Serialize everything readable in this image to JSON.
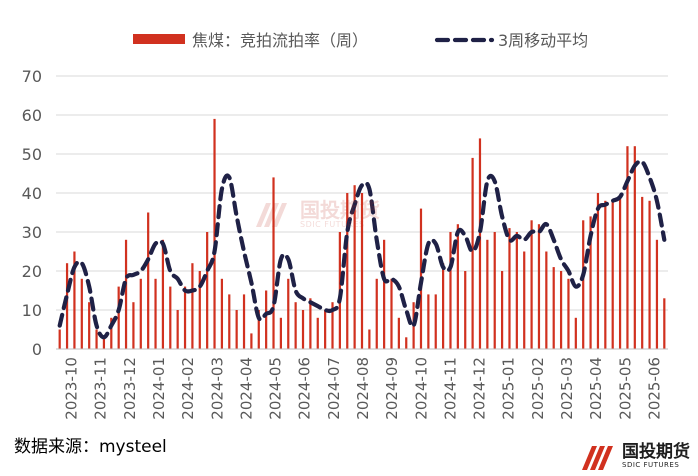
{
  "chart_data": {
    "type": "bar",
    "title": "",
    "xlabel": "",
    "ylabel": "",
    "ylim": [
      0,
      70
    ],
    "yticks": [
      0,
      10,
      20,
      30,
      40,
      50,
      60,
      70
    ],
    "grid": true,
    "legend_position": "top",
    "x_tick_labels": [
      "2023-10",
      "2023-11",
      "2023-12",
      "2024-01",
      "2024-02",
      "2024-03",
      "2024-04",
      "2024-05",
      "2024-06",
      "2024-07",
      "2024-08",
      "2024-09",
      "2024-10",
      "2024-11",
      "2024-12",
      "2025-01",
      "2025-02",
      "2025-03",
      "2025-04",
      "2025-05",
      "2025-06"
    ],
    "series": [
      {
        "name": "焦煤：竞拍流拍率（周）",
        "kind": "bar",
        "color": "#d1311f",
        "values": [
          5,
          22,
          25,
          18,
          12,
          5,
          3,
          8,
          16,
          28,
          12,
          18,
          35,
          18,
          28,
          16,
          10,
          16,
          22,
          20,
          30,
          59,
          18,
          14,
          10,
          14,
          4,
          10,
          15,
          44,
          8,
          18,
          12,
          10,
          13,
          8,
          10,
          12,
          30,
          40,
          42,
          40,
          5,
          18,
          28,
          18,
          8,
          3,
          12,
          36,
          14,
          14,
          22,
          30,
          32,
          20,
          49,
          54,
          28,
          30,
          20,
          31,
          30,
          25,
          33,
          32,
          25,
          21,
          20,
          18,
          8,
          33,
          34,
          40,
          38,
          38,
          39,
          52,
          52,
          39,
          38,
          28,
          13
        ]
      },
      {
        "name": "3周移动平均",
        "kind": "line",
        "style": "dashed",
        "color": "#1f2146",
        "values": [
          6,
          14,
          21,
          22,
          16,
          6,
          3,
          6,
          10,
          18,
          19,
          20,
          23,
          27,
          27,
          20,
          18,
          15,
          15,
          16,
          20,
          25,
          41,
          44,
          34,
          25,
          17,
          8,
          9,
          11,
          23,
          23,
          15,
          13,
          12,
          11,
          10,
          10,
          13,
          30,
          37,
          42,
          41,
          28,
          18,
          18,
          16,
          10,
          6,
          17,
          27,
          27,
          21,
          21,
          30,
          29,
          25,
          30,
          43,
          43,
          34,
          28,
          29,
          28,
          30,
          30,
          32,
          28,
          23,
          20,
          16,
          19,
          29,
          36,
          37,
          38,
          39,
          43,
          47,
          48,
          44,
          38,
          28
        ]
      }
    ]
  },
  "source_text": "数据来源：mysteel",
  "brand": {
    "name": "国投期货",
    "sub": "SDIC FUTURES"
  }
}
